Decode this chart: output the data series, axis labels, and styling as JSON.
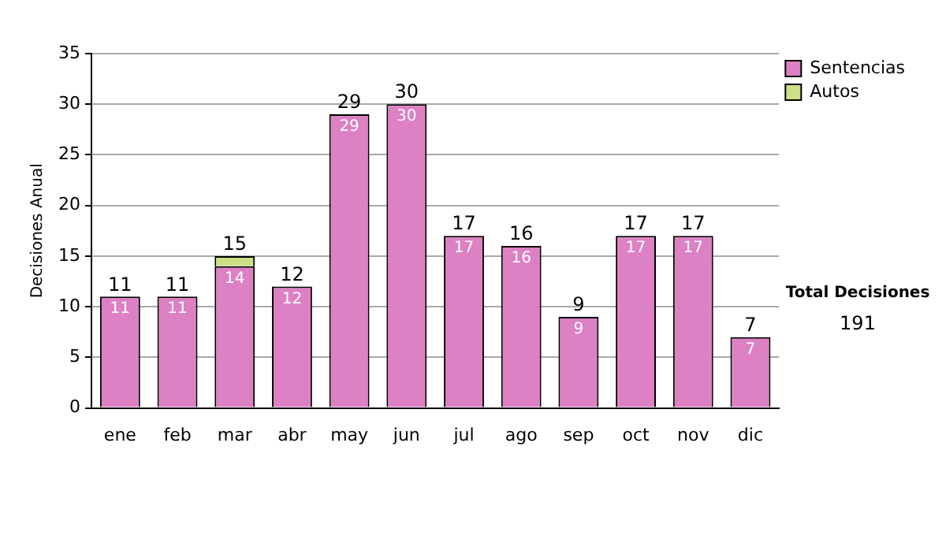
{
  "chart_data": {
    "type": "bar",
    "ylabel": "Decisiones Anual",
    "categories": [
      "ene",
      "feb",
      "mar",
      "abr",
      "may",
      "jun",
      "jul",
      "ago",
      "sep",
      "oct",
      "nov",
      "dic"
    ],
    "series": [
      {
        "name": "Sentencias",
        "color": "#dd80c4",
        "values": [
          11,
          11,
          14,
          12,
          29,
          30,
          17,
          16,
          9,
          17,
          17,
          7
        ],
        "value_labels": [
          "11",
          "11",
          "14",
          "12",
          "29",
          "30",
          "17",
          "16",
          "9",
          "17",
          "17",
          "7"
        ]
      },
      {
        "name": "Autos",
        "color": "#cce088",
        "values": [
          null,
          null,
          1,
          null,
          null,
          null,
          null,
          null,
          null,
          null,
          null,
          null
        ]
      }
    ],
    "stacked": true,
    "totals": [
      "11",
      "11",
      "15",
      "12",
      "29",
      "30",
      "17",
      "16",
      "9",
      "17",
      "17",
      "7"
    ],
    "ylim": [
      0,
      35
    ],
    "yticks": [
      0,
      5,
      10,
      15,
      20,
      25,
      30,
      35
    ],
    "grid": "y",
    "legend": "right",
    "annotations": [
      "Total Decisiones",
      "191"
    ]
  }
}
